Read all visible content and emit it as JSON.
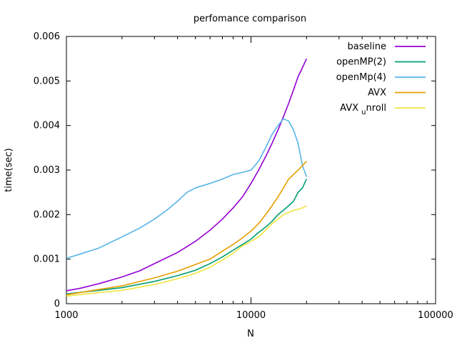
{
  "chart_data": {
    "type": "line",
    "title": "perfomance comparison",
    "xlabel": "N",
    "ylabel": "time(sec)",
    "xscale": "log",
    "xlim": [
      1000,
      100000
    ],
    "ylim": [
      0,
      0.006
    ],
    "x_ticks": [
      "1000",
      "10000",
      "100000"
    ],
    "y_ticks": [
      "0",
      "0.001",
      "0.002",
      "0.003",
      "0.004",
      "0.005",
      "0.006"
    ],
    "legend_position": "top-right",
    "grid": false,
    "series": [
      {
        "name": "baseline",
        "color": "#9400d3",
        "points": [
          [
            1000,
            0.00029
          ],
          [
            1200,
            0.00035
          ],
          [
            1500,
            0.00045
          ],
          [
            2000,
            0.0006
          ],
          [
            2500,
            0.00074
          ],
          [
            3000,
            0.0009
          ],
          [
            4000,
            0.00115
          ],
          [
            5000,
            0.0014
          ],
          [
            6000,
            0.00165
          ],
          [
            7000,
            0.0019
          ],
          [
            8000,
            0.00215
          ],
          [
            9000,
            0.0024
          ],
          [
            10000,
            0.0027
          ],
          [
            11000,
            0.003
          ],
          [
            12000,
            0.0033
          ],
          [
            13000,
            0.0036
          ],
          [
            14000,
            0.0039
          ],
          [
            15000,
            0.0042
          ],
          [
            16000,
            0.0045
          ],
          [
            17000,
            0.0048
          ],
          [
            18000,
            0.0051
          ],
          [
            19000,
            0.0053
          ],
          [
            20000,
            0.0055
          ]
        ]
      },
      {
        "name": "openMP(2)",
        "color": "#009e73",
        "points": [
          [
            1000,
            0.00022
          ],
          [
            1500,
            0.0003
          ],
          [
            2000,
            0.00036
          ],
          [
            3000,
            0.0005
          ],
          [
            4000,
            0.00063
          ],
          [
            5000,
            0.00075
          ],
          [
            6000,
            0.0009
          ],
          [
            7000,
            0.00105
          ],
          [
            8000,
            0.0012
          ],
          [
            9000,
            0.00133
          ],
          [
            10000,
            0.00145
          ],
          [
            11000,
            0.0016
          ],
          [
            12000,
            0.00172
          ],
          [
            13000,
            0.00185
          ],
          [
            14000,
            0.002
          ],
          [
            15000,
            0.0021
          ],
          [
            16000,
            0.0022
          ],
          [
            17000,
            0.0023
          ],
          [
            18000,
            0.0025
          ],
          [
            19000,
            0.0026
          ],
          [
            20000,
            0.0028
          ]
        ]
      },
      {
        "name": "openMp(4)",
        "color": "#56b4e9",
        "points": [
          [
            1000,
            0.00102
          ],
          [
            1200,
            0.00112
          ],
          [
            1500,
            0.00125
          ],
          [
            2000,
            0.0015
          ],
          [
            2500,
            0.0017
          ],
          [
            3000,
            0.0019
          ],
          [
            3500,
            0.0021
          ],
          [
            4000,
            0.0023
          ],
          [
            4500,
            0.0025
          ],
          [
            5000,
            0.0026
          ],
          [
            6000,
            0.0027
          ],
          [
            7000,
            0.0028
          ],
          [
            8000,
            0.0029
          ],
          [
            9000,
            0.00295
          ],
          [
            10000,
            0.003
          ],
          [
            11000,
            0.0032
          ],
          [
            12000,
            0.0035
          ],
          [
            13000,
            0.0038
          ],
          [
            14000,
            0.004
          ],
          [
            15000,
            0.00415
          ],
          [
            16000,
            0.0041
          ],
          [
            17000,
            0.0039
          ],
          [
            18000,
            0.0036
          ],
          [
            19000,
            0.0031
          ],
          [
            20000,
            0.00285
          ]
        ]
      },
      {
        "name": "AVX",
        "color": "#e69f00",
        "points": [
          [
            1000,
            0.0002
          ],
          [
            1500,
            0.00032
          ],
          [
            2000,
            0.0004
          ],
          [
            3000,
            0.00058
          ],
          [
            4000,
            0.00073
          ],
          [
            5000,
            0.00088
          ],
          [
            6000,
            0.001
          ],
          [
            7000,
            0.00118
          ],
          [
            8000,
            0.00133
          ],
          [
            9000,
            0.00148
          ],
          [
            10000,
            0.00163
          ],
          [
            11000,
            0.0018
          ],
          [
            12000,
            0.002
          ],
          [
            13000,
            0.0022
          ],
          [
            14000,
            0.0024
          ],
          [
            15000,
            0.0026
          ],
          [
            16000,
            0.0028
          ],
          [
            17000,
            0.0029
          ],
          [
            18000,
            0.003
          ],
          [
            19000,
            0.0031
          ],
          [
            20000,
            0.0032
          ]
        ]
      },
      {
        "name": "AVX_unroll",
        "color": "#f0e442",
        "points": [
          [
            1000,
            0.00017
          ],
          [
            1500,
            0.00025
          ],
          [
            2000,
            0.0003
          ],
          [
            3000,
            0.00043
          ],
          [
            4000,
            0.00056
          ],
          [
            5000,
            0.00068
          ],
          [
            6000,
            0.00082
          ],
          [
            7000,
            0.00098
          ],
          [
            8000,
            0.00113
          ],
          [
            9000,
            0.0013
          ],
          [
            10000,
            0.0014
          ],
          [
            11000,
            0.0015
          ],
          [
            12000,
            0.00165
          ],
          [
            13000,
            0.0018
          ],
          [
            14000,
            0.0019
          ],
          [
            15000,
            0.002
          ],
          [
            16000,
            0.00205
          ],
          [
            17000,
            0.0021
          ],
          [
            18000,
            0.00212
          ],
          [
            19000,
            0.00215
          ],
          [
            20000,
            0.0022
          ]
        ]
      }
    ]
  },
  "legend": [
    {
      "label": "baseline",
      "sub": ""
    },
    {
      "label": "openMP(2)",
      "sub": ""
    },
    {
      "label": "openMp(4)",
      "sub": ""
    },
    {
      "label": "AVX",
      "sub": ""
    },
    {
      "label": "AVX ",
      "sub": "u",
      "rest": "nroll"
    }
  ]
}
